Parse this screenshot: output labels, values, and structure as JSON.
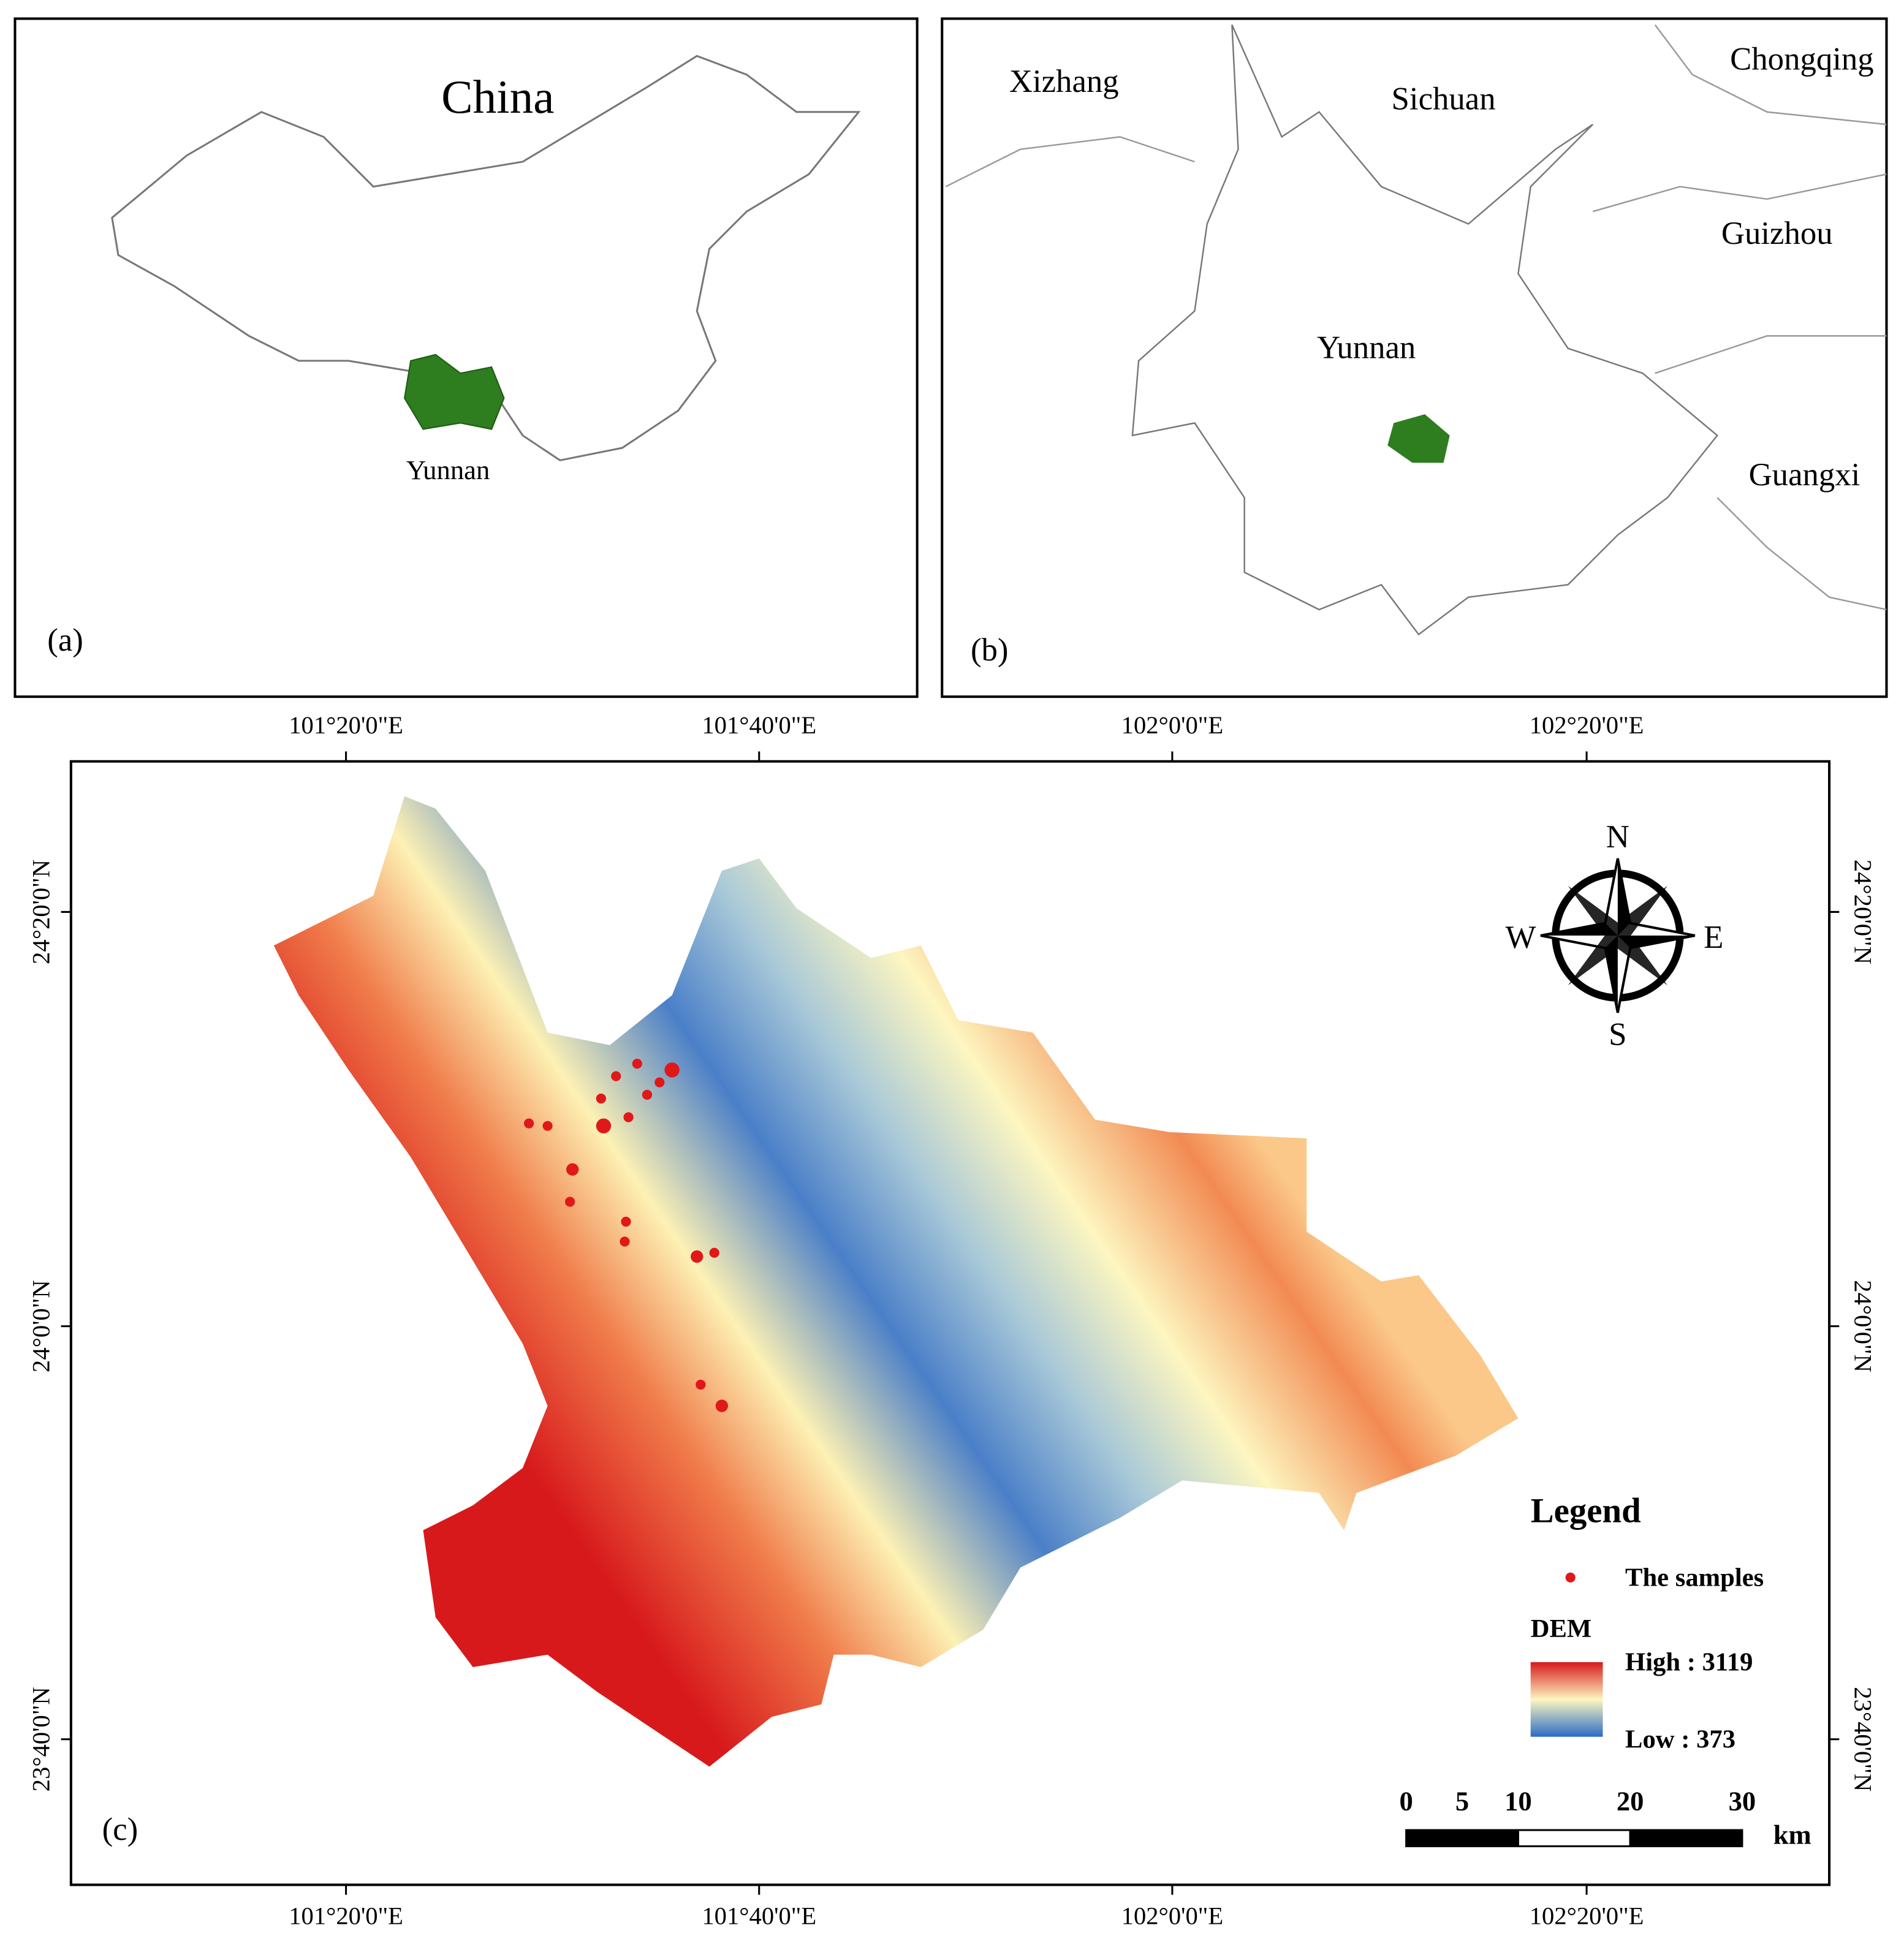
{
  "panel_a": {
    "title": "China",
    "region_label": "Yunnan",
    "tag": "(a)"
  },
  "panel_b": {
    "labels": [
      "Xizhang",
      "Sichuan",
      "Chongqing",
      "Guizhou",
      "Yunnan",
      "Guangxi"
    ],
    "tag": "(b)"
  },
  "panel_c": {
    "tag": "(c)",
    "longitude_labels": [
      "101°20'0\"E",
      "101°40'0\"E",
      "102°0'0\"E",
      "102°20'0\"E"
    ],
    "latitude_labels": [
      "24°20'0\"N",
      "24°0'0\"N",
      "23°40'0\"N"
    ],
    "compass": {
      "n": "N",
      "e": "E",
      "s": "S",
      "w": "W"
    },
    "legend": {
      "title": "Legend",
      "samples": "The samples",
      "dem_title": "DEM",
      "high": "High : 3119",
      "low": "Low : 373"
    },
    "scale_bar": {
      "ticks": [
        0,
        5,
        10,
        20,
        30
      ],
      "unit": "km"
    }
  }
}
